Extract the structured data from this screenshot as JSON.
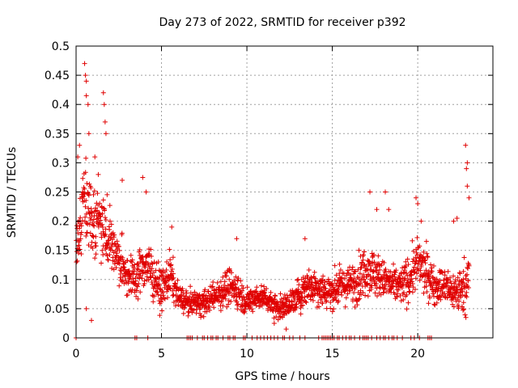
{
  "chart_data": {
    "type": "scatter",
    "title": "Day 273 of 2022, SRMTID for receiver p392",
    "xlabel": "GPS time / hours",
    "ylabel": "SRMTID / TECUs",
    "xlim": [
      0,
      24.4
    ],
    "ylim": [
      0,
      0.5
    ],
    "grid": true,
    "marker": "+",
    "colors": {
      "series": "#e00000",
      "grid": "#a0a0a0",
      "axis": "#000000"
    },
    "xticks": [
      0,
      5,
      10,
      15,
      20
    ],
    "xtick_labels": [
      "0",
      "5",
      "10",
      "15",
      "20"
    ],
    "yticks": [
      0,
      0.05,
      0.1,
      0.15,
      0.2,
      0.25,
      0.3,
      0.35,
      0.4,
      0.45,
      0.5
    ],
    "ytick_labels": [
      "0",
      "0.05",
      "0.1",
      "0.15",
      "0.2",
      "0.25",
      "0.3",
      "0.35",
      "0.4",
      "0.45",
      "0.5"
    ],
    "envelope": {
      "hours": [
        0,
        0.5,
        1,
        1.5,
        2,
        2.5,
        3,
        3.5,
        4,
        4.5,
        5,
        5.5,
        6,
        6.5,
        7,
        7.5,
        8,
        8.5,
        9,
        9.5,
        10,
        10.5,
        11,
        11.5,
        12,
        12.5,
        13,
        13.5,
        14,
        14.5,
        15,
        15.5,
        16,
        16.5,
        17,
        17.5,
        18,
        18.5,
        19,
        19.5,
        20,
        20.5,
        21,
        21.5,
        22,
        22.5,
        23
      ],
      "center": [
        0.15,
        0.25,
        0.2,
        0.2,
        0.17,
        0.13,
        0.11,
        0.1,
        0.13,
        0.11,
        0.08,
        0.11,
        0.07,
        0.06,
        0.06,
        0.06,
        0.07,
        0.08,
        0.09,
        0.08,
        0.06,
        0.07,
        0.07,
        0.06,
        0.05,
        0.06,
        0.07,
        0.09,
        0.09,
        0.08,
        0.08,
        0.09,
        0.09,
        0.1,
        0.12,
        0.11,
        0.1,
        0.09,
        0.09,
        0.1,
        0.13,
        0.11,
        0.09,
        0.09,
        0.08,
        0.08,
        0.1
      ],
      "spread": [
        0.05,
        0.08,
        0.07,
        0.06,
        0.05,
        0.04,
        0.04,
        0.03,
        0.05,
        0.04,
        0.03,
        0.04,
        0.02,
        0.02,
        0.02,
        0.02,
        0.02,
        0.03,
        0.03,
        0.03,
        0.02,
        0.02,
        0.02,
        0.02,
        0.02,
        0.02,
        0.03,
        0.03,
        0.03,
        0.03,
        0.03,
        0.03,
        0.03,
        0.04,
        0.04,
        0.04,
        0.03,
        0.03,
        0.03,
        0.04,
        0.04,
        0.04,
        0.03,
        0.03,
        0.03,
        0.04,
        0.05
      ]
    },
    "peaks": [
      {
        "x": 0.5,
        "y": 0.47
      },
      {
        "x": 0.55,
        "y": 0.45
      },
      {
        "x": 0.6,
        "y": 0.44
      },
      {
        "x": 0.6,
        "y": 0.415
      },
      {
        "x": 0.7,
        "y": 0.4
      },
      {
        "x": 0.75,
        "y": 0.35
      },
      {
        "x": 0.2,
        "y": 0.33
      },
      {
        "x": 0.1,
        "y": 0.31
      },
      {
        "x": 1.6,
        "y": 0.42
      },
      {
        "x": 1.65,
        "y": 0.4
      },
      {
        "x": 1.7,
        "y": 0.37
      },
      {
        "x": 1.75,
        "y": 0.35
      },
      {
        "x": 1.1,
        "y": 0.31
      },
      {
        "x": 1.3,
        "y": 0.28
      },
      {
        "x": 2.7,
        "y": 0.27
      },
      {
        "x": 3.9,
        "y": 0.275
      },
      {
        "x": 4.1,
        "y": 0.25
      },
      {
        "x": 5.6,
        "y": 0.19
      },
      {
        "x": 9.4,
        "y": 0.17
      },
      {
        "x": 13.4,
        "y": 0.17
      },
      {
        "x": 17.2,
        "y": 0.25
      },
      {
        "x": 17.6,
        "y": 0.22
      },
      {
        "x": 18.1,
        "y": 0.25
      },
      {
        "x": 18.3,
        "y": 0.22
      },
      {
        "x": 19.9,
        "y": 0.24
      },
      {
        "x": 20.0,
        "y": 0.23
      },
      {
        "x": 20.2,
        "y": 0.2
      },
      {
        "x": 22.1,
        "y": 0.2
      },
      {
        "x": 22.3,
        "y": 0.205
      },
      {
        "x": 22.8,
        "y": 0.33
      },
      {
        "x": 22.9,
        "y": 0.3
      },
      {
        "x": 22.85,
        "y": 0.29
      },
      {
        "x": 22.9,
        "y": 0.26
      },
      {
        "x": 23.0,
        "y": 0.24
      },
      {
        "x": 0.6,
        "y": 0.05
      },
      {
        "x": 0.9,
        "y": 0.03
      },
      {
        "x": 12.3,
        "y": 0.015
      },
      {
        "x": 11.6,
        "y": 0.025
      }
    ],
    "zero_points_x": [
      0,
      3.45,
      3.55,
      4.2,
      6.5,
      6.6,
      6.7,
      6.8,
      7.1,
      7.4,
      7.5,
      7.7,
      7.9,
      8.0,
      8.2,
      8.3,
      8.6,
      8.9,
      9.0,
      9.2,
      9.3,
      9.8,
      9.9,
      10.3,
      10.6,
      10.8,
      11.0,
      11.2,
      11.4,
      11.6,
      11.8,
      12.1,
      12.2,
      12.5,
      12.7,
      13.1,
      13.4,
      14.2,
      14.4,
      14.5,
      14.6,
      14.7,
      14.8,
      14.9,
      15.0,
      15.1,
      15.3,
      15.4,
      15.6,
      15.8,
      16.0,
      16.1,
      16.3,
      16.6,
      16.8,
      16.9,
      17.0,
      17.1,
      17.3,
      17.6,
      17.8,
      18.0,
      18.1,
      18.3,
      18.5,
      18.6,
      18.8,
      19.1,
      19.6,
      19.8,
      20.1,
      20.6,
      20.7,
      20.8
    ]
  }
}
